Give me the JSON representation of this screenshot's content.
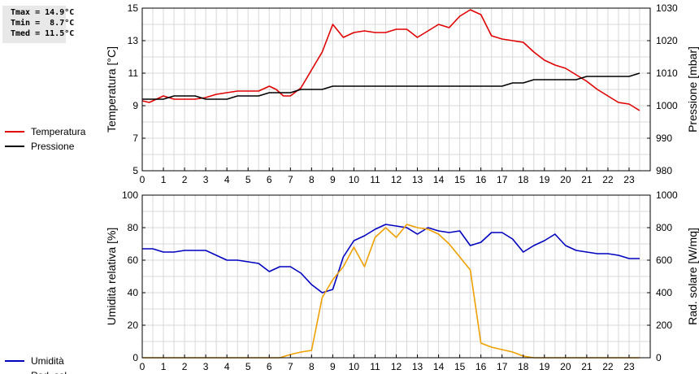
{
  "stats": {
    "tmax": "Tmax = 14.9°C",
    "tmin": "Tmin =  8.7°C",
    "tmed": "Tmed = 11.5°C"
  },
  "chart_data": [
    {
      "type": "line",
      "title": "",
      "xlabel": "",
      "xlim": [
        0,
        24
      ],
      "xticks": [
        "0",
        "1",
        "2",
        "3",
        "4",
        "5",
        "6",
        "7",
        "8",
        "9",
        "10",
        "11",
        "12",
        "13",
        "14",
        "15",
        "16",
        "17",
        "18",
        "19",
        "20",
        "21",
        "22",
        "23"
      ],
      "ylabel": "Temperatura [°C]",
      "ylim": [
        5,
        15
      ],
      "yticks": [
        5,
        7,
        9,
        11,
        13,
        15
      ],
      "y2label": "Pressione [mbar]",
      "y2lim": [
        980,
        1030
      ],
      "y2ticks": [
        980,
        990,
        1000,
        1010,
        1020,
        1030
      ],
      "grid": true,
      "legend_position": "left",
      "series": [
        {
          "name": "Temperatura",
          "axis": "left",
          "color": "#e00000",
          "x": [
            0,
            0.33,
            0.67,
            1,
            1.5,
            2,
            2.5,
            3,
            3.5,
            4,
            4.5,
            5,
            5.5,
            6,
            6.33,
            6.67,
            7,
            7.5,
            8,
            8.5,
            9,
            9.5,
            10,
            10.5,
            11,
            11.5,
            12,
            12.5,
            13,
            13.5,
            14,
            14.5,
            15,
            15.5,
            16,
            16.5,
            17,
            17.5,
            18,
            18.5,
            19,
            19.5,
            20,
            20.5,
            21,
            21.5,
            22,
            22.5,
            23,
            23.5
          ],
          "values": [
            9.3,
            9.2,
            9.4,
            9.6,
            9.4,
            9.4,
            9.4,
            9.5,
            9.7,
            9.8,
            9.9,
            9.9,
            9.9,
            10.2,
            10.0,
            9.6,
            9.6,
            10.1,
            11.2,
            12.3,
            14.0,
            13.2,
            13.5,
            13.6,
            13.5,
            13.5,
            13.7,
            13.7,
            13.2,
            13.6,
            14.0,
            13.8,
            14.5,
            14.9,
            14.6,
            13.3,
            13.1,
            13.0,
            12.9,
            12.3,
            11.8,
            11.5,
            11.3,
            10.9,
            10.5,
            10.0,
            9.6,
            9.2,
            9.1,
            8.7
          ]
        },
        {
          "name": "Pressione",
          "axis": "right",
          "color": "#000000",
          "x": [
            0,
            1,
            1.5,
            2,
            2.5,
            3,
            3.5,
            4,
            4.5,
            5,
            5.5,
            6,
            6.5,
            7,
            7.5,
            8,
            8.5,
            9,
            9.5,
            10,
            11,
            12,
            13,
            14,
            15,
            16,
            16.5,
            17,
            17.5,
            18,
            18.5,
            19,
            19.5,
            20,
            20.5,
            21,
            21.5,
            22,
            22.5,
            23,
            23.5
          ],
          "values": [
            1002,
            1002,
            1003,
            1003,
            1003,
            1002,
            1002,
            1002,
            1003,
            1003,
            1003,
            1004,
            1004,
            1004,
            1005,
            1005,
            1005,
            1006,
            1006,
            1006,
            1006,
            1006,
            1006,
            1006,
            1006,
            1006,
            1006,
            1006,
            1007,
            1007,
            1008,
            1008,
            1008,
            1008,
            1008,
            1009,
            1009,
            1009,
            1009,
            1009,
            1010
          ]
        }
      ]
    },
    {
      "type": "line",
      "title": "",
      "xlabel": "",
      "xlim": [
        0,
        24
      ],
      "xticks": [
        "0",
        "1",
        "2",
        "3",
        "4",
        "5",
        "6",
        "7",
        "8",
        "9",
        "10",
        "11",
        "12",
        "13",
        "14",
        "15",
        "16",
        "17",
        "18",
        "19",
        "20",
        "21",
        "22",
        "23"
      ],
      "ylabel": "Umidità relativa [%]",
      "ylim": [
        0,
        100
      ],
      "yticks": [
        0,
        20,
        40,
        60,
        80,
        100
      ],
      "y2label": "Rad. solare [W/mq]",
      "y2lim": [
        0,
        1000
      ],
      "y2ticks": [
        0,
        200,
        400,
        600,
        800,
        1000
      ],
      "grid": true,
      "legend_position": "left",
      "series": [
        {
          "name": "Umidità",
          "axis": "left",
          "color": "#0000c0",
          "x": [
            0,
            0.5,
            1,
            1.5,
            2,
            2.5,
            3,
            3.5,
            4,
            4.5,
            5,
            5.5,
            6,
            6.5,
            7,
            7.5,
            8,
            8.5,
            9,
            9.5,
            10,
            10.5,
            11,
            11.5,
            12,
            12.5,
            13,
            13.5,
            14,
            14.5,
            15,
            15.5,
            16,
            16.5,
            17,
            17.5,
            18,
            18.5,
            19,
            19.5,
            20,
            20.5,
            21,
            21.5,
            22,
            22.5,
            23,
            23.5
          ],
          "values": [
            67,
            67,
            65,
            65,
            66,
            66,
            66,
            63,
            60,
            60,
            59,
            58,
            53,
            56,
            56,
            52,
            45,
            40,
            42,
            62,
            72,
            75,
            79,
            82,
            81,
            80,
            76,
            80,
            78,
            77,
            78,
            69,
            71,
            77,
            77,
            73,
            65,
            69,
            72,
            76,
            69,
            66,
            65,
            64,
            64,
            63,
            61,
            61
          ]
        },
        {
          "name": "Rad. sol.",
          "axis": "right",
          "color": "#f0a000",
          "x": [
            0,
            0.5,
            1,
            1.5,
            2,
            2.5,
            3,
            3.5,
            4,
            4.5,
            5,
            5.5,
            6,
            6.5,
            7,
            7.5,
            8,
            8.5,
            9,
            9.5,
            10,
            10.5,
            11,
            11.5,
            12,
            12.5,
            13,
            13.5,
            14,
            14.5,
            15,
            15.5,
            16,
            16.5,
            17,
            17.5,
            18,
            18.5,
            19,
            19.5,
            20,
            20.5,
            21,
            21.5,
            22,
            22.5,
            23,
            23.5
          ],
          "values": [
            0,
            0,
            0,
            0,
            0,
            0,
            0,
            0,
            0,
            0,
            0,
            0,
            0,
            0,
            20,
            35,
            45,
            370,
            480,
            560,
            680,
            560,
            740,
            800,
            740,
            820,
            800,
            790,
            760,
            700,
            620,
            540,
            90,
            65,
            50,
            35,
            10,
            0,
            0,
            0,
            0,
            0,
            0,
            0,
            0,
            0,
            0,
            0
          ]
        }
      ]
    }
  ]
}
